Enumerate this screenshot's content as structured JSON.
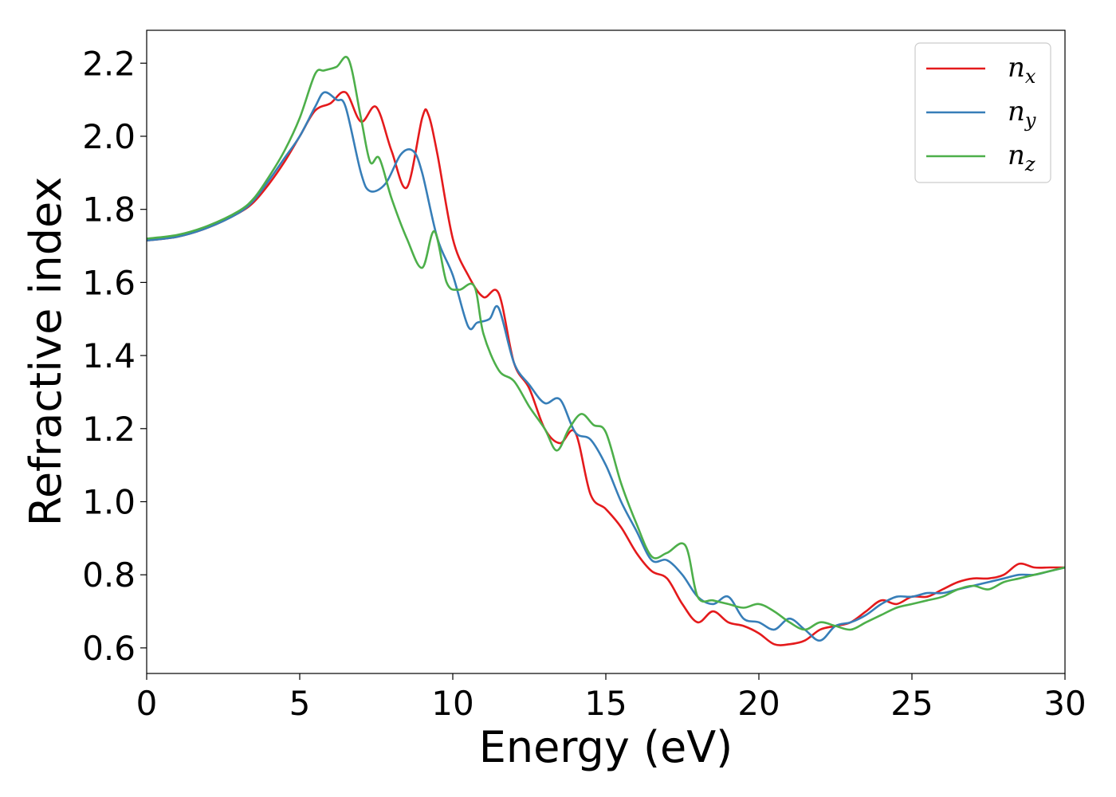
{
  "chart_data": {
    "type": "line",
    "xlabel": "Energy (eV)",
    "ylabel": "Refractive index",
    "xlim": [
      0,
      30
    ],
    "ylim": [
      0.53,
      2.29
    ],
    "xticks": [
      "0",
      "5",
      "10",
      "15",
      "20",
      "25",
      "30"
    ],
    "yticks": [
      "0.6",
      "0.8",
      "1.0",
      "1.2",
      "1.4",
      "1.6",
      "1.8",
      "2.0",
      "2.2"
    ],
    "grid": false,
    "legend_position": "top-right",
    "series": [
      {
        "name": "n_x",
        "label_base": "n",
        "label_sub": "x",
        "color": "#e41a1c",
        "x": [
          0,
          1,
          2,
          3,
          3.5,
          4,
          4.5,
          5,
          5.5,
          6,
          6.5,
          7,
          7.5,
          8,
          8.5,
          9,
          9.2,
          9.5,
          10,
          10.5,
          11,
          11.5,
          12,
          12.5,
          13,
          13.5,
          14,
          14.5,
          15,
          15.5,
          16,
          16.5,
          17,
          17.5,
          18,
          18.5,
          19,
          19.5,
          20,
          20.5,
          21,
          21.5,
          22,
          22.5,
          23,
          23.5,
          24,
          24.5,
          25,
          25.5,
          26,
          26.5,
          27,
          27.5,
          28,
          28.5,
          29,
          29.5,
          30
        ],
        "y": [
          1.715,
          1.725,
          1.75,
          1.79,
          1.82,
          1.87,
          1.93,
          2.0,
          2.07,
          2.09,
          2.12,
          2.04,
          2.08,
          1.96,
          1.86,
          2.05,
          2.06,
          1.95,
          1.72,
          1.62,
          1.56,
          1.57,
          1.38,
          1.31,
          1.2,
          1.16,
          1.19,
          1.02,
          0.98,
          0.93,
          0.86,
          0.81,
          0.79,
          0.72,
          0.67,
          0.7,
          0.67,
          0.66,
          0.64,
          0.61,
          0.61,
          0.62,
          0.65,
          0.66,
          0.67,
          0.7,
          0.73,
          0.72,
          0.74,
          0.74,
          0.76,
          0.78,
          0.79,
          0.79,
          0.8,
          0.83,
          0.82,
          0.82,
          0.82
        ]
      },
      {
        "name": "n_y",
        "label_base": "n",
        "label_sub": "y",
        "color": "#377eb8",
        "x": [
          0,
          1,
          2,
          3,
          3.5,
          4,
          4.5,
          5,
          5.5,
          5.8,
          6.2,
          6.5,
          7,
          7.3,
          7.8,
          8.3,
          8.7,
          9,
          9.5,
          10,
          10.5,
          10.8,
          11.2,
          11.5,
          12,
          12.5,
          13,
          13.5,
          14,
          14.5,
          15,
          15.5,
          16,
          16.5,
          17,
          17.5,
          18,
          18.5,
          19,
          19.5,
          20,
          20.5,
          21,
          21.5,
          22,
          22.5,
          23,
          23.5,
          24,
          24.5,
          25,
          25.5,
          26,
          26.5,
          27,
          27.5,
          28,
          28.5,
          29,
          29.5,
          30
        ],
        "y": [
          1.715,
          1.725,
          1.75,
          1.79,
          1.825,
          1.88,
          1.94,
          2.0,
          2.08,
          2.12,
          2.1,
          2.08,
          1.9,
          1.85,
          1.87,
          1.95,
          1.96,
          1.9,
          1.72,
          1.62,
          1.48,
          1.49,
          1.5,
          1.53,
          1.38,
          1.32,
          1.27,
          1.28,
          1.19,
          1.17,
          1.1,
          1.0,
          0.92,
          0.84,
          0.84,
          0.8,
          0.74,
          0.72,
          0.74,
          0.68,
          0.67,
          0.65,
          0.68,
          0.65,
          0.62,
          0.66,
          0.67,
          0.69,
          0.72,
          0.74,
          0.74,
          0.75,
          0.75,
          0.76,
          0.77,
          0.78,
          0.79,
          0.8,
          0.8,
          0.81,
          0.82
        ]
      },
      {
        "name": "n_z",
        "label_base": "n",
        "label_sub": "z",
        "color": "#4daf4a",
        "x": [
          0,
          1,
          2,
          3,
          3.5,
          4,
          4.5,
          5,
          5.5,
          5.8,
          6.2,
          6.6,
          7,
          7.3,
          7.6,
          8,
          8.5,
          9,
          9.4,
          9.8,
          10.2,
          10.7,
          11,
          11.5,
          12,
          12.5,
          13,
          13.4,
          13.8,
          14.2,
          14.6,
          15,
          15.5,
          16,
          16.5,
          17,
          17.6,
          18,
          18.5,
          19,
          19.5,
          20,
          20.5,
          21,
          21.5,
          22,
          22.5,
          23,
          23.5,
          24,
          24.5,
          25,
          25.5,
          26,
          26.5,
          27,
          27.5,
          28,
          28.5,
          29,
          29.5,
          30
        ],
        "y": [
          1.72,
          1.73,
          1.755,
          1.795,
          1.83,
          1.89,
          1.96,
          2.05,
          2.17,
          2.18,
          2.19,
          2.21,
          2.05,
          1.93,
          1.94,
          1.83,
          1.72,
          1.64,
          1.74,
          1.6,
          1.58,
          1.59,
          1.46,
          1.36,
          1.33,
          1.26,
          1.2,
          1.14,
          1.2,
          1.24,
          1.21,
          1.19,
          1.05,
          0.94,
          0.85,
          0.86,
          0.88,
          0.74,
          0.73,
          0.72,
          0.71,
          0.72,
          0.7,
          0.67,
          0.65,
          0.67,
          0.66,
          0.65,
          0.67,
          0.69,
          0.71,
          0.72,
          0.73,
          0.74,
          0.76,
          0.77,
          0.76,
          0.78,
          0.79,
          0.8,
          0.81,
          0.82
        ]
      }
    ]
  }
}
